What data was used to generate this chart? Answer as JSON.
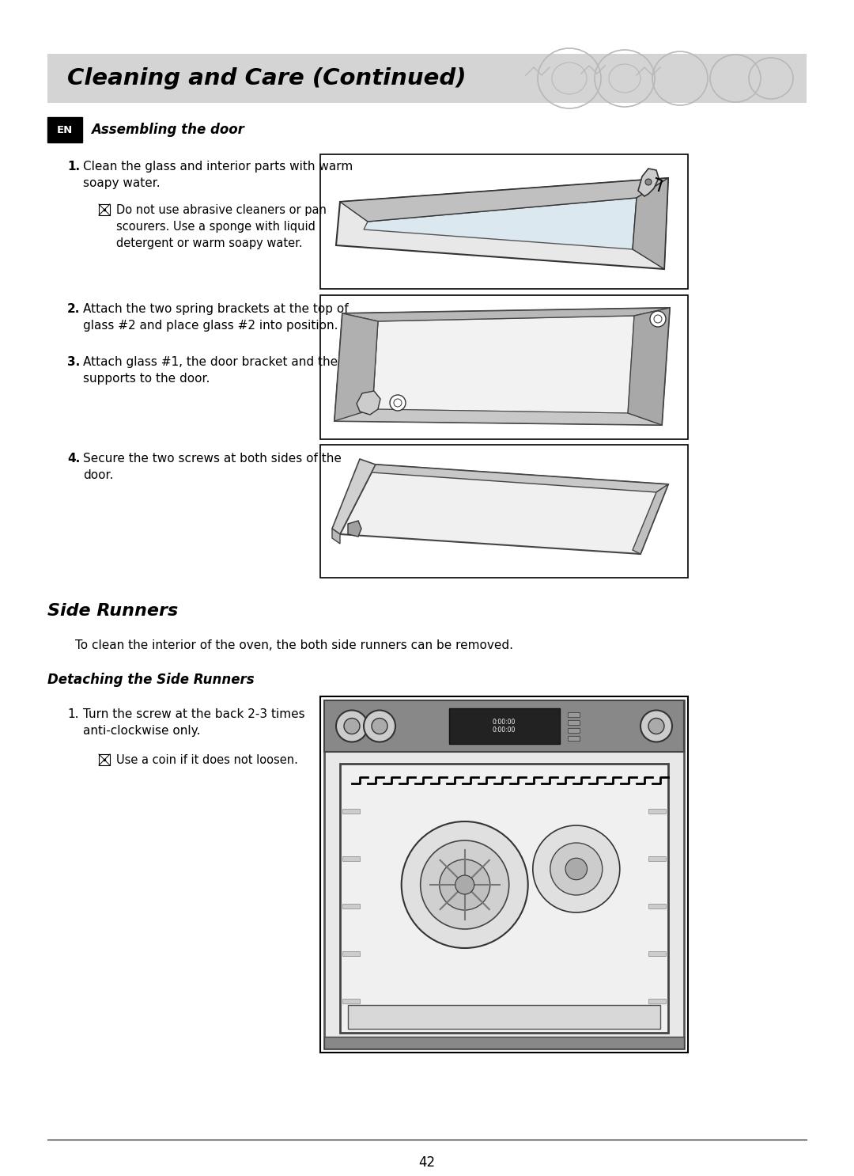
{
  "bg_color": "#ffffff",
  "header_bg": "#d4d4d4",
  "header_text": "Cleaning and Care (Continued)",
  "section1_title": "Assembling the door",
  "section2_title": "Side Runners",
  "section2_intro": "To clean the interior of the oven, the both side runners can be removed.",
  "section2_sub": "Detaching the Side Runners",
  "page_number": "42",
  "step1_main": "Clean the glass and interior parts with warm\nsoapy water.",
  "step1_note": "Do not use abrasive cleaners or pan\nscourers. Use a sponge with liquid\ndetergent or warm soapy water.",
  "step2_main": "Attach the two spring brackets at the top of\nglass #2 and place glass #2 into position.",
  "step3_main": "Attach glass #1, the door bracket and the\nsupports to the door.",
  "step4_main": "Secure the two screws at both sides of the\ndoor.",
  "sr_step1_main": "Turn the screw at the back 2-3 times\nanti-clockwise only.",
  "sr_step1_note": "Use a coin if it does not loosen."
}
